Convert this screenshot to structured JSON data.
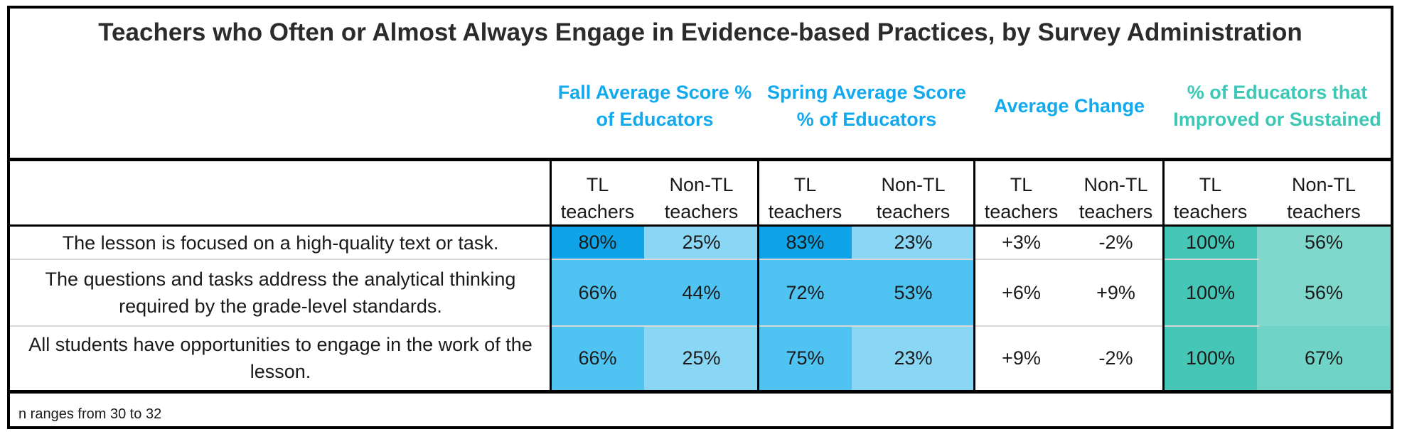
{
  "chart_data": {
    "type": "table",
    "title": "Teachers who Often or Almost Always Engage in Evidence-based Practices, by Survey Administration",
    "column_groups": [
      {
        "label": "Fall Average Score % of Educators",
        "color": "#12a9ee"
      },
      {
        "label": "Spring Average Score % of Educators",
        "color": "#12a9ee"
      },
      {
        "label": "Average Change",
        "color": "#12a9ee"
      },
      {
        "label": "% of Educators that Improved or Sustained",
        "color": "#3cc8b5"
      }
    ],
    "subcolumns": [
      "TL teachers",
      "Non-TL teachers"
    ],
    "rows": [
      {
        "label": "The lesson is focused on a high-quality text or task.",
        "cells": [
          "80%",
          "25%",
          "83%",
          "23%",
          "+3%",
          "-2%",
          "100%",
          "56%"
        ],
        "values": [
          80,
          25,
          83,
          23,
          3,
          -2,
          100,
          56
        ]
      },
      {
        "label": "The questions and tasks address the analytical thinking required by the grade-level standards.",
        "cells": [
          "66%",
          "44%",
          "72%",
          "53%",
          "+6%",
          "+9%",
          "100%",
          "56%"
        ],
        "values": [
          66,
          44,
          72,
          53,
          6,
          9,
          100,
          56
        ]
      },
      {
        "label": "All students have opportunities to engage in the work of the lesson.",
        "cells": [
          "66%",
          "25%",
          "75%",
          "23%",
          "+9%",
          "-2%",
          "100%",
          "67%"
        ],
        "values": [
          66,
          25,
          75,
          23,
          9,
          -2,
          100,
          67
        ]
      }
    ],
    "note": "n ranges from 30 to 32",
    "cell_colors": [
      [
        "#0fa4e8",
        "#8ad6f5",
        "#0fa4e8",
        "#8ad6f5",
        "#ffffff",
        "#ffffff",
        "#45c6b6",
        "#80d8cd"
      ],
      [
        "#4fc3f2",
        "#4fc3f2",
        "#4fc3f2",
        "#4fc3f2",
        "#ffffff",
        "#ffffff",
        "#45c6b6",
        "#80d8cd"
      ],
      [
        "#4fc3f2",
        "#8ad6f5",
        "#4fc3f2",
        "#8ad6f5",
        "#ffffff",
        "#ffffff",
        "#45c6b6",
        "#6fd3c6"
      ]
    ]
  }
}
